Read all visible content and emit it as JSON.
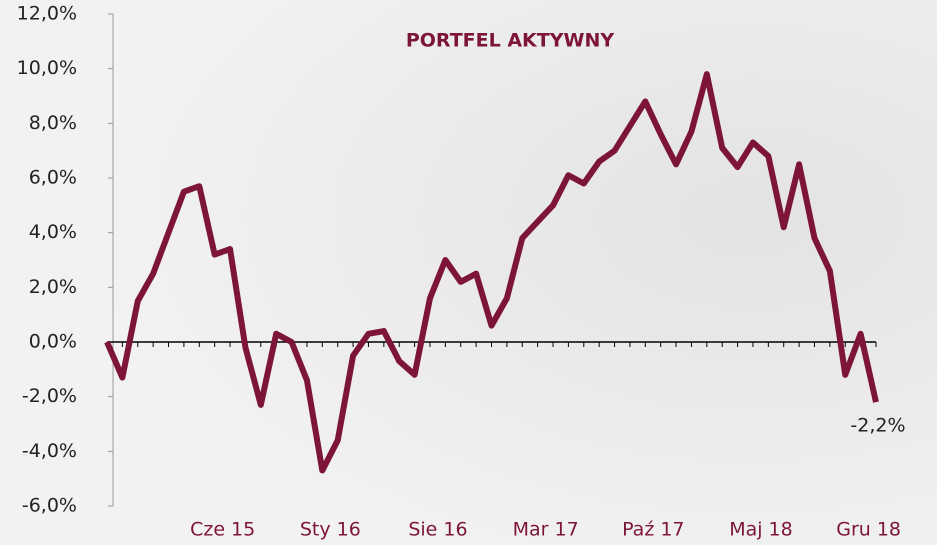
{
  "chart_data": {
    "type": "line",
    "title": "PORTFEL AKTYWNY",
    "categories": [
      null,
      null,
      null,
      null,
      null,
      null,
      null,
      "Cze 15",
      null,
      null,
      null,
      null,
      null,
      null,
      "Sty 16",
      null,
      null,
      null,
      null,
      null,
      null,
      "Sie 16",
      null,
      null,
      null,
      null,
      null,
      null,
      "Mar 17",
      null,
      null,
      null,
      null,
      null,
      null,
      "Paź 17",
      null,
      null,
      null,
      null,
      null,
      null,
      "Maj 18",
      null,
      null,
      null,
      null,
      null,
      null,
      "Gru 18",
      null
    ],
    "series": [
      {
        "name": "PORTFEL AKTYWNY",
        "color": "#7d1537",
        "values": [
          0.0,
          -1.3,
          1.5,
          2.5,
          4.0,
          5.5,
          5.7,
          3.2,
          3.4,
          -0.2,
          -2.3,
          0.3,
          0.0,
          -1.4,
          -4.7,
          -3.6,
          -0.5,
          0.3,
          0.4,
          -0.7,
          -1.2,
          1.6,
          3.0,
          2.2,
          2.5,
          0.6,
          1.6,
          3.8,
          4.4,
          5.0,
          6.1,
          5.8,
          6.6,
          7.0,
          7.9,
          8.8,
          7.6,
          6.5,
          7.7,
          9.8,
          7.1,
          6.4,
          7.3,
          6.8,
          4.2,
          6.5,
          3.8,
          2.6,
          -1.2,
          0.3,
          -2.2
        ],
        "value_labels": [
          null,
          null,
          null,
          null,
          null,
          null,
          null,
          null,
          null,
          null,
          null,
          null,
          null,
          null,
          null,
          null,
          null,
          null,
          null,
          null,
          null,
          null,
          null,
          null,
          null,
          null,
          null,
          null,
          null,
          null,
          null,
          null,
          null,
          null,
          null,
          null,
          null,
          null,
          null,
          null,
          null,
          null,
          null,
          null,
          null,
          null,
          null,
          null,
          null,
          null,
          "-2,2%"
        ]
      }
    ],
    "ylim": [
      -6,
      12
    ],
    "yticks": [
      {
        "value": -6,
        "label": "-6,0%"
      },
      {
        "value": -4,
        "label": "-4,0%"
      },
      {
        "value": -2,
        "label": "-2,0%"
      },
      {
        "value": 0,
        "label": "0,0%"
      },
      {
        "value": 2,
        "label": "2,0%"
      },
      {
        "value": 4,
        "label": "4,0%"
      },
      {
        "value": 6,
        "label": "6,0%"
      },
      {
        "value": 8,
        "label": "8,0%"
      },
      {
        "value": 10,
        "label": "10,0%"
      },
      {
        "value": 12,
        "label": "12,0%"
      }
    ]
  }
}
